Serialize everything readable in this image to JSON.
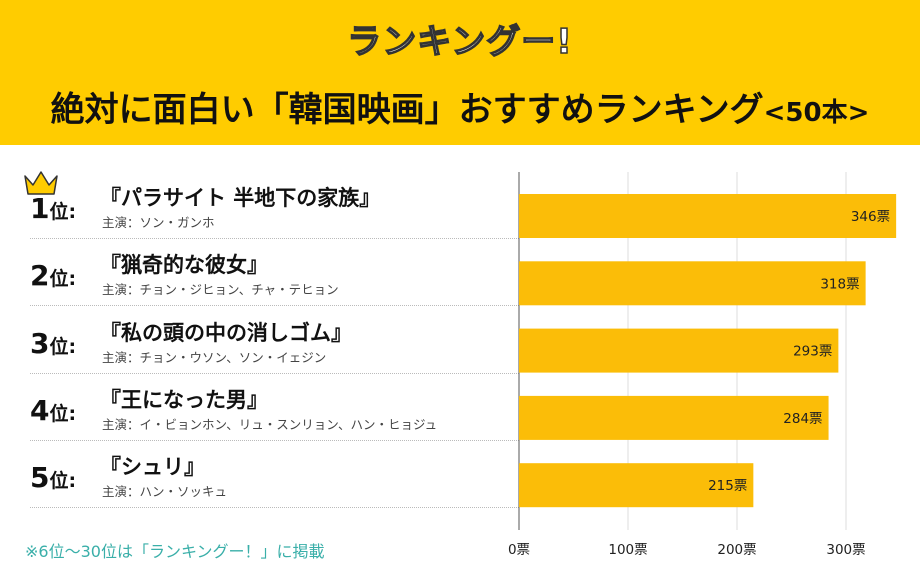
{
  "header": {
    "logo": "ランキングー!",
    "title": "絶対に面白い「韓国映画」おすすめランキング",
    "title_suffix": "<50本>",
    "bg_color": "#FFCC00"
  },
  "footnote": "※6位〜30位は「ランキングー！」に掲載",
  "chart_data": {
    "type": "bar",
    "orientation": "horizontal",
    "categories": [
      "『パラサイト 半地下の家族』",
      "『猟奇的な彼女』",
      "『私の頭の中の消しゴム』",
      "『王になった男』",
      "『シュリ』"
    ],
    "ranks": [
      "1",
      "2",
      "3",
      "4",
      "5"
    ],
    "rank_unit": "位:",
    "cast_label": "主演：",
    "cast": [
      "ソン・ガンホ",
      "チョン・ジヒョン、チャ・テヒョン",
      "チョン・ウソン、ソン・イェジン",
      "イ・ビョンホン、リュ・スンリョン、ハン・ヒョジュ",
      "ハン・ソッキュ"
    ],
    "values": [
      346,
      318,
      293,
      284,
      215
    ],
    "data_labels": [
      "346票",
      "318票",
      "293票",
      "284票",
      "215票"
    ],
    "xticks": [
      0,
      100,
      200,
      300
    ],
    "xtick_labels": [
      "0票",
      "100票",
      "200票",
      "300票"
    ],
    "xlim": [
      0,
      346
    ],
    "grid": true,
    "bar_color": "#FBBD08",
    "top_icon": "crown-icon"
  }
}
